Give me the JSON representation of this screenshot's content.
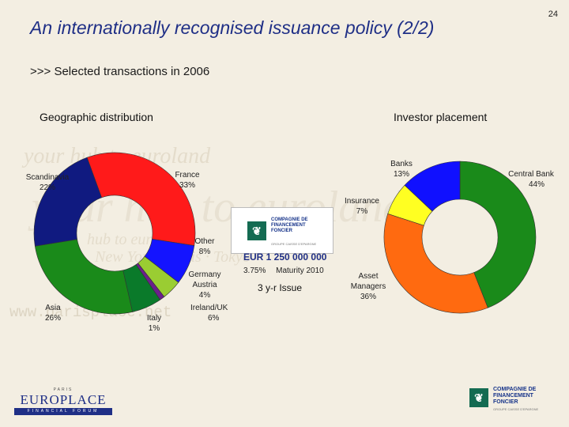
{
  "page": {
    "title": "An internationally  recognised issuance policy (2/2)",
    "page_number": "24",
    "subtitle": ">>> Selected transactions in 2006"
  },
  "background": {
    "watermark_lines": [
      "your hub to euroland",
      "your hub to euroland",
      "hub to euroland",
      "New York · Paris · Tokyo"
    ],
    "watermark_url": "www.parisplace.net"
  },
  "deal": {
    "issuer_logo_text": [
      "COMPAGNIE DE",
      "FINANCEMENT",
      "FONCIER"
    ],
    "issuer_logo_sub": "GROUPE CAISSE D'EPARGNE",
    "amount": "EUR 1 250 000 000",
    "coupon": "3.75%",
    "maturity": "Maturity 2010",
    "tenor": "3 y-r Issue"
  },
  "footer": {
    "left_top": "PARIS",
    "left_brand": "EUROPLACE",
    "left_bar": "FINANCIAL FORUM",
    "right_logo_text": [
      "COMPAGNIE DE",
      "FINANCEMENT",
      "FONCIER"
    ],
    "right_logo_sub": "GROUPE CAISSE D'EPARGNE"
  },
  "colors": {
    "title": "#1f2f86",
    "brand_green": "#146b52"
  },
  "chart_data": [
    {
      "type": "pie",
      "variant": "donut",
      "title": "Geographic distribution",
      "categories": [
        "France",
        "Other",
        "Germany Austria",
        "Italy",
        "Ireland/UK",
        "Asia",
        "Scandinavia"
      ],
      "values": [
        33,
        8,
        4,
        1,
        6,
        26,
        22
      ],
      "labels": [
        [
          "France",
          "33%"
        ],
        [
          "Other",
          "8%"
        ],
        [
          "Germany",
          "Austria",
          "4%"
        ],
        [
          "Italy",
          "1%"
        ],
        [
          "Ireland/UK",
          "6%"
        ],
        [
          "Asia",
          "26%"
        ],
        [
          "Scandinavia",
          "22%"
        ]
      ],
      "colors": [
        "#ff1a1a",
        "#1414ff",
        "#9acd32",
        "#6b1f8c",
        "#0a7a2a",
        "#1a8a1a",
        "#101a80"
      ],
      "start_angle_deg": -20
    },
    {
      "type": "pie",
      "variant": "donut",
      "title": "Investor placement",
      "categories": [
        "Central Bank",
        "Asset Managers",
        "Insurance",
        "Banks"
      ],
      "values": [
        44,
        36,
        7,
        13
      ],
      "labels": [
        [
          "Central Bank",
          "44%"
        ],
        [
          "Asset",
          "Managers",
          "36%"
        ],
        [
          "Insurance",
          "7%"
        ],
        [
          "Banks",
          "13%"
        ]
      ],
      "colors": [
        "#1a8a1a",
        "#ff6a10",
        "#ffff22",
        "#1010ff"
      ],
      "start_angle_deg": 0
    }
  ]
}
